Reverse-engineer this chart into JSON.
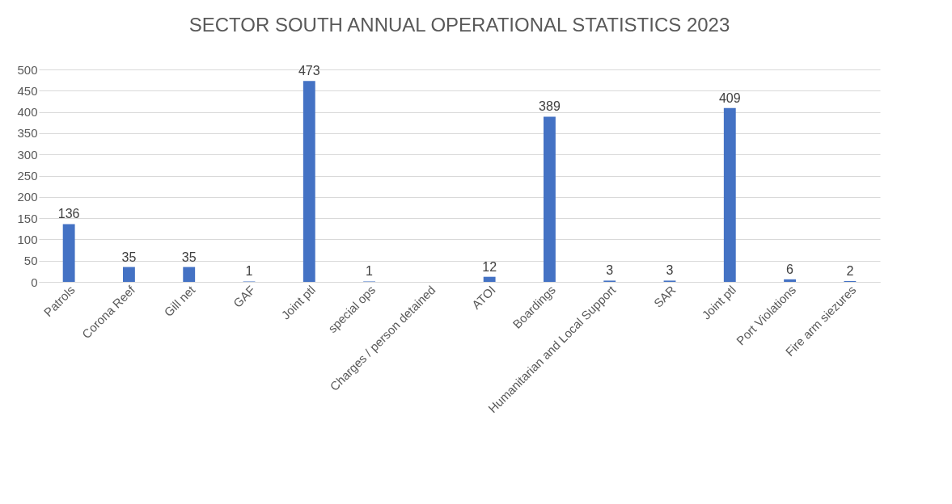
{
  "chart_data": {
    "type": "bar",
    "title": "SECTOR SOUTH ANNUAL OPERATIONAL STATISTICS 2023",
    "categories": [
      "Patrols",
      "Corona Reef",
      "Gill net",
      "GAF",
      "Joint ptl",
      "special ops",
      "Charges / person detained",
      "ATOI",
      "Boardings",
      "Humanitarian and Local Support",
      "SAR",
      "Joint ptl",
      "Port Violations",
      "Fire arm siezures"
    ],
    "values": [
      136,
      35,
      35,
      1,
      473,
      1,
      null,
      12,
      389,
      3,
      3,
      409,
      6,
      2
    ],
    "color": "#4472c4",
    "ylim": [
      0,
      500
    ],
    "yticks": [
      0,
      50,
      100,
      150,
      200,
      250,
      300,
      350,
      400,
      450,
      500
    ],
    "grid": "y",
    "data_labels": true
  }
}
